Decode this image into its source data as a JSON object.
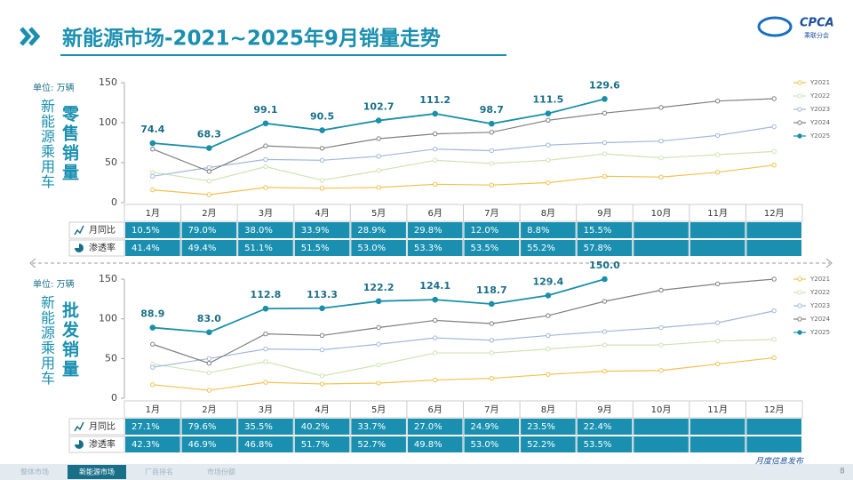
{
  "header": {
    "title": "新能源市场-2021~2025年9月销量走势",
    "logo": {
      "text": "CPCA",
      "subtext": "乘联分会"
    }
  },
  "chart_data": [
    {
      "type": "line",
      "title": "零售销量",
      "y_label": "新能源乘用车",
      "unit_label": "单位: 万辆",
      "categories": [
        "1月",
        "2月",
        "3月",
        "4月",
        "5月",
        "6月",
        "7月",
        "8月",
        "9月",
        "10月",
        "11月",
        "12月"
      ],
      "ylim": [
        0,
        150
      ],
      "yticks": [
        0,
        50,
        100,
        150
      ],
      "grid": false,
      "legend": "right",
      "series": [
        {
          "name": "Y2021",
          "color": "#f2c14e",
          "values": [
            16,
            10,
            19,
            18,
            19,
            23,
            22,
            25,
            33,
            32,
            38,
            47
          ]
        },
        {
          "name": "Y2022",
          "color": "#cfe3b4",
          "values": [
            38,
            27,
            45,
            28,
            40,
            53,
            49,
            53,
            61,
            56,
            60,
            64
          ]
        },
        {
          "name": "Y2023",
          "color": "#9fb8dc",
          "values": [
            33,
            44,
            54,
            53,
            58,
            67,
            65,
            72,
            75,
            77,
            84,
            95
          ]
        },
        {
          "name": "Y2024",
          "color": "#7f7f7f",
          "values": [
            67,
            39,
            71,
            68,
            80,
            86,
            88,
            103,
            112,
            119,
            127,
            130
          ]
        },
        {
          "name": "Y2025",
          "color": "#1a8fa8",
          "values": [
            74.4,
            68.3,
            99.1,
            90.5,
            102.7,
            111.2,
            98.7,
            111.5,
            129.6,
            null,
            null,
            null
          ],
          "value_labels": [
            "74.4",
            "68.3",
            "99.1",
            "90.5",
            "102.7",
            "111.2",
            "98.7",
            "111.5",
            "129.6",
            null,
            null,
            null
          ]
        }
      ],
      "table": {
        "rows": [
          {
            "label": "月同比",
            "cells": [
              "10.5%",
              "79.0%",
              "38.0%",
              "33.9%",
              "28.9%",
              "29.8%",
              "12.0%",
              "8.8%",
              "15.5%"
            ]
          },
          {
            "label": "渗透率",
            "cells": [
              "41.4%",
              "49.4%",
              "51.1%",
              "51.5%",
              "53.0%",
              "53.3%",
              "53.5%",
              "55.2%",
              "57.8%"
            ]
          }
        ]
      }
    },
    {
      "type": "line",
      "title": "批发销量",
      "y_label": "新能源乘用车",
      "unit_label": "单位: 万辆",
      "categories": [
        "1月",
        "2月",
        "3月",
        "4月",
        "5月",
        "6月",
        "7月",
        "8月",
        "9月",
        "10月",
        "11月",
        "12月"
      ],
      "ylim": [
        0,
        150
      ],
      "yticks": [
        0,
        50,
        100,
        150
      ],
      "grid": false,
      "legend": "right",
      "series": [
        {
          "name": "Y2021",
          "color": "#f2c14e",
          "values": [
            17,
            10,
            20,
            18,
            19,
            23,
            25,
            30,
            34,
            35,
            43,
            51
          ]
        },
        {
          "name": "Y2022",
          "color": "#cfe3b4",
          "values": [
            43,
            32,
            46,
            28,
            42,
            57,
            57,
            62,
            67,
            67,
            72,
            74
          ]
        },
        {
          "name": "Y2023",
          "color": "#9fb8dc",
          "values": [
            39,
            50,
            62,
            61,
            68,
            76,
            73,
            79,
            84,
            89,
            95,
            110
          ]
        },
        {
          "name": "Y2024",
          "color": "#7f7f7f",
          "values": [
            68,
            44,
            81,
            79,
            89,
            98,
            94,
            104,
            122,
            136,
            144,
            150
          ]
        },
        {
          "name": "Y2025",
          "color": "#1a8fa8",
          "values": [
            88.9,
            83.0,
            112.8,
            113.3,
            122.2,
            124.1,
            118.7,
            129.4,
            150.0,
            null,
            null,
            null
          ],
          "value_labels": [
            "88.9",
            "83.0",
            "112.8",
            "113.3",
            "122.2",
            "124.1",
            "118.7",
            "129.4",
            "150.0",
            null,
            null,
            null
          ]
        }
      ],
      "table": {
        "rows": [
          {
            "label": "月同比",
            "cells": [
              "27.1%",
              "79.6%",
              "35.5%",
              "40.2%",
              "33.7%",
              "27.0%",
              "24.9%",
              "23.5%",
              "22.4%"
            ]
          },
          {
            "label": "渗透率",
            "cells": [
              "42.3%",
              "46.9%",
              "46.8%",
              "51.7%",
              "52.7%",
              "49.8%",
              "53.0%",
              "52.2%",
              "53.5%"
            ]
          }
        ]
      }
    }
  ],
  "footer": {
    "tabs": [
      "整体市场",
      "新能源市场",
      "厂商排名",
      "市场份额"
    ],
    "caption": "月度信息发布",
    "page": "8"
  }
}
